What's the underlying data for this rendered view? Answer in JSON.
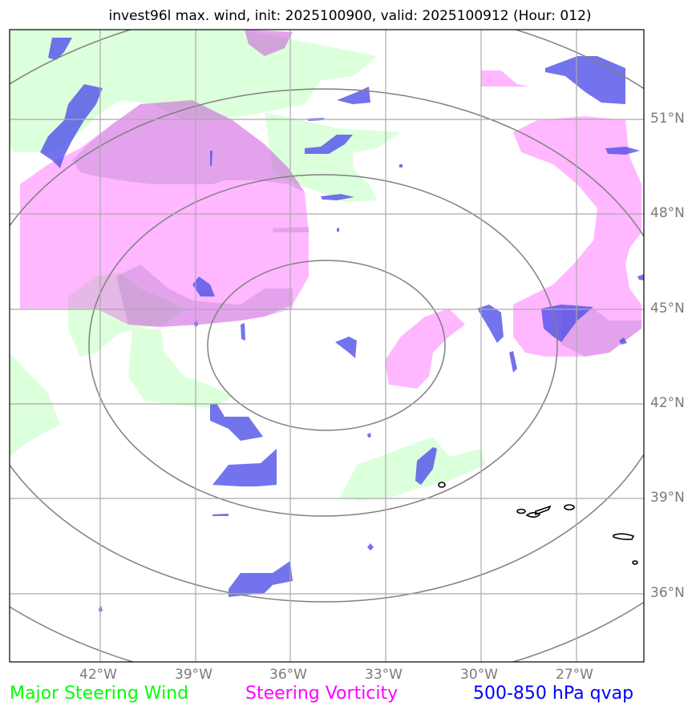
{
  "title": "invest96l max. wind, init: 2025100900, valid: 2025100912 (Hour: 012)",
  "longitude_labels": [
    "42°W",
    "39°W",
    "36°W",
    "33°W",
    "30°W",
    "27°W"
  ],
  "latitude_labels": [
    "51°N",
    "48°N",
    "45°N",
    "42°N",
    "39°N",
    "36°N"
  ],
  "legend": {
    "steering_wind": {
      "label": "Major Steering Wind",
      "color": "#00ff00"
    },
    "steering_vorticity": {
      "label": "Steering Vorticity",
      "color": "#ff00ff"
    },
    "qvap": {
      "label": "500-850 hPa qvap",
      "color": "#0000ff"
    }
  },
  "map": {
    "grid_color": "#aaaaaa",
    "range_ring_color": "#808080",
    "range_ring_count": 4,
    "fill_colors": {
      "steering_wind": "#d9ffd9",
      "steering_vorticity": "#ffb3ff",
      "qvap": "#5a5ae6"
    }
  }
}
